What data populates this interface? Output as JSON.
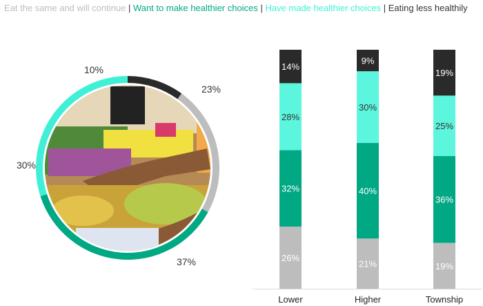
{
  "legend": [
    {
      "label": "Eat the same and will continue",
      "color": "#bdbdbd"
    },
    {
      "label": "Want to make healthier choices",
      "color": "#00a884"
    },
    {
      "label": "Have made healthier choices",
      "color": "#3ff0d6"
    },
    {
      "label": "Eating less healthily",
      "color": "#2a2a2a"
    }
  ],
  "legend_separator": "|",
  "photo": {
    "icon": "market-vendor-bananas-photo"
  },
  "chart_data": [
    {
      "type": "pie",
      "style": "donut",
      "categories": [
        "Eating less healthily",
        "Eat the same and will continue",
        "Want to make healthier choices",
        "Have made healthier choices"
      ],
      "values": [
        10,
        23,
        37,
        30
      ],
      "labels": [
        "10%",
        "23%",
        "37%",
        "30%"
      ],
      "colors": [
        "#2a2a2a",
        "#bdbdbd",
        "#00a884",
        "#3ff0d6"
      ]
    },
    {
      "type": "bar",
      "stacked": true,
      "categories": [
        "Lower",
        "Higher",
        "Township"
      ],
      "series": [
        {
          "name": "Eat the same and will continue",
          "values": [
            26,
            21,
            19
          ],
          "labels": [
            "26%",
            "21%",
            "19%"
          ],
          "color": "#bdbdbd",
          "label_color": "#ffffff"
        },
        {
          "name": "Want to make healthier choices",
          "values": [
            32,
            40,
            36
          ],
          "labels": [
            "32%",
            "40%",
            "36%"
          ],
          "color": "#00a884",
          "label_color": "#ffffff"
        },
        {
          "name": "Have made healthier choices",
          "values": [
            28,
            30,
            25
          ],
          "labels": [
            "28%",
            "30%",
            "25%"
          ],
          "color": "#5cf5dd",
          "label_color": "#333333"
        },
        {
          "name": "Eating less healthily",
          "values": [
            14,
            9,
            19
          ],
          "labels": [
            "14%",
            "9%",
            "19%"
          ],
          "color": "#2a2a2a",
          "label_color": "#ffffff"
        }
      ],
      "grid": false,
      "legend": "top"
    }
  ]
}
